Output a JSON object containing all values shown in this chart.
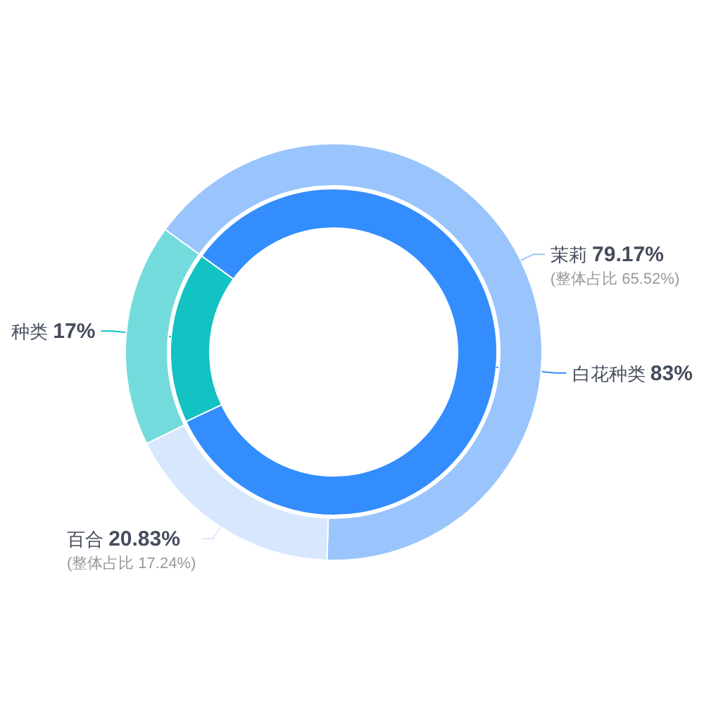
{
  "chart_data": [
    {
      "type": "donut",
      "categories": [
        "白花种类",
        "种类"
      ],
      "values": [
        83,
        17
      ],
      "colors": [
        "#348dfd",
        "#13c2c2"
      ],
      "value_labels": [
        "83%",
        "17%"
      ]
    },
    {
      "type": "donut",
      "categories": [
        "茉莉",
        "百合",
        null
      ],
      "values": [
        65.52,
        17.24,
        17.24
      ],
      "colors": [
        "#9ac5fc",
        "#d7e7fe",
        "#73dbdb"
      ],
      "value_labels": [
        "79.17%\n(整体占比 65.52%)",
        "20.83%\n(整体占比 17.24%)",
        null
      ]
    }
  ]
}
